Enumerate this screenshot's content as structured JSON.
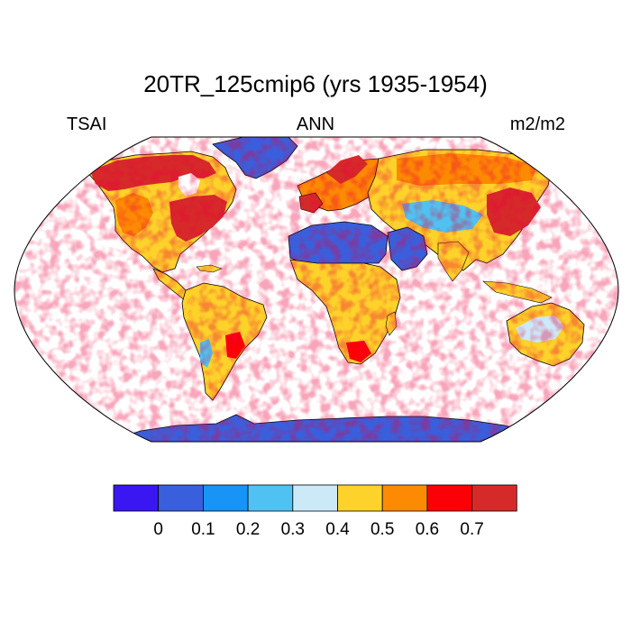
{
  "title": "20TR_125cmip6 (yrs 1935-1954)",
  "left_label": "TSAI",
  "center_label": "ANN",
  "right_label": "m2/m2",
  "colorbar": {
    "colors": [
      "#3a16f2",
      "#3a5fdc",
      "#1893f6",
      "#50c2f2",
      "#cce9f8",
      "#fdd22a",
      "#fd8a03",
      "#fb0006",
      "#d62a2a"
    ],
    "tick_labels": [
      "0",
      "0.1",
      "0.2",
      "0.3",
      "0.4",
      "0.5",
      "0.6",
      "0.7"
    ]
  },
  "map": {
    "projection": "robinson",
    "ocean_color": "#ffffff",
    "coastline_color": "#000000"
  }
}
